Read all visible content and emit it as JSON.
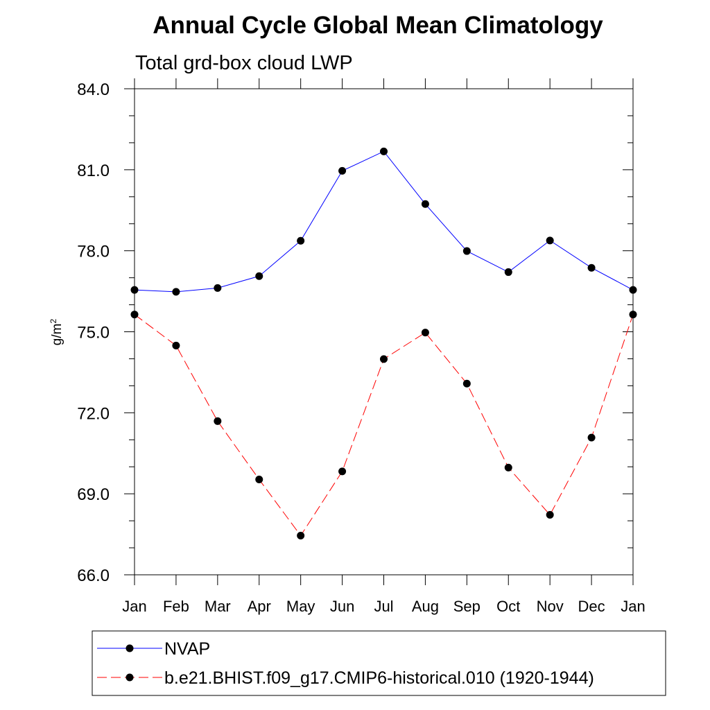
{
  "chart_data": {
    "type": "line",
    "title": "Annual Cycle Global Mean Climatology",
    "subtitle": "Total grd-box cloud LWP",
    "ylabel": "g/m",
    "ylabel_superscript": "2",
    "xlabel": "",
    "categories": [
      "Jan",
      "Feb",
      "Mar",
      "Apr",
      "May",
      "Jun",
      "Jul",
      "Aug",
      "Sep",
      "Oct",
      "Nov",
      "Dec",
      "Jan"
    ],
    "ylim": [
      66.0,
      84.0
    ],
    "yticks": [
      66.0,
      69.0,
      72.0,
      75.0,
      78.0,
      81.0,
      84.0
    ],
    "ytick_labels": [
      "66.0",
      "69.0",
      "72.0",
      "75.0",
      "78.0",
      "81.0",
      "84.0"
    ],
    "grid": false,
    "legend_position": "bottom",
    "series": [
      {
        "name": "NVAP",
        "color": "#0000ff",
        "line_style": "solid",
        "marker": "filled-circle",
        "values": [
          76.55,
          76.48,
          76.62,
          77.06,
          78.37,
          80.96,
          81.68,
          79.73,
          77.99,
          77.21,
          78.38,
          77.37,
          76.55
        ]
      },
      {
        "name": "b.e21.BHIST.f09_g17.CMIP6-historical.010 (1920-1944)",
        "color": "#ff0000",
        "line_style": "dashed",
        "marker": "filled-circle",
        "values": [
          75.64,
          74.49,
          71.69,
          69.53,
          67.45,
          69.83,
          73.99,
          74.97,
          73.08,
          69.97,
          68.22,
          71.08,
          75.64
        ]
      }
    ]
  }
}
